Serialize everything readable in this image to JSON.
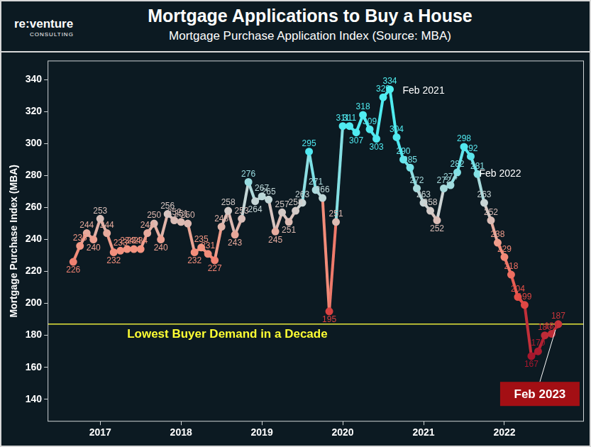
{
  "chart_data": {
    "type": "line",
    "title": "Mortgage Applications to Buy a House",
    "subtitle": "Mortgage Purchase Application Index (Source: MBA)",
    "logo": [
      "re:venture",
      "CONSULTING"
    ],
    "y_label": "Mortgage Purchase Index (MBA)",
    "categories": [
      null,
      null,
      null,
      null,
      "2017",
      null,
      null,
      null,
      null,
      null,
      null,
      null,
      null,
      null,
      null,
      null,
      "2018",
      null,
      null,
      null,
      null,
      null,
      null,
      null,
      null,
      null,
      null,
      null,
      "2019",
      null,
      null,
      null,
      null,
      null,
      null,
      null,
      null,
      null,
      null,
      null,
      "2020",
      null,
      null,
      null,
      null,
      null,
      null,
      null,
      null,
      null,
      null,
      null,
      "2021",
      null,
      null,
      null,
      null,
      null,
      null,
      null,
      null,
      null,
      null,
      null,
      "2022",
      null,
      null,
      null,
      null,
      null,
      null,
      null,
      null
    ],
    "values": [
      226,
      236,
      244,
      240,
      253,
      244,
      232,
      233,
      234,
      234,
      234,
      244,
      250,
      240,
      256,
      252,
      251,
      250,
      232,
      235,
      231,
      227,
      248,
      258,
      243,
      253,
      276,
      264,
      267,
      265,
      245,
      257,
      251,
      258,
      263,
      295,
      271,
      266,
      195,
      251,
      311,
      311,
      307,
      318,
      309,
      303,
      329,
      334,
      304,
      290,
      285,
      272,
      263,
      258,
      252,
      272,
      274,
      282,
      298,
      292,
      281,
      263,
      252,
      238,
      229,
      218,
      204,
      199,
      167,
      170,
      180,
      181,
      187
    ],
    "ylim": [
      126,
      352
    ],
    "yticks": [
      140,
      160,
      180,
      200,
      220,
      240,
      260,
      280,
      300,
      320,
      340
    ],
    "grid": false,
    "data_labels": true,
    "marker": "circle",
    "reference_line": {
      "value": 187,
      "label": "Lowest Buyer Demand in a Decade"
    },
    "annotations": [
      "Feb 2021",
      "Feb 2022",
      "Feb 2023"
    ]
  }
}
